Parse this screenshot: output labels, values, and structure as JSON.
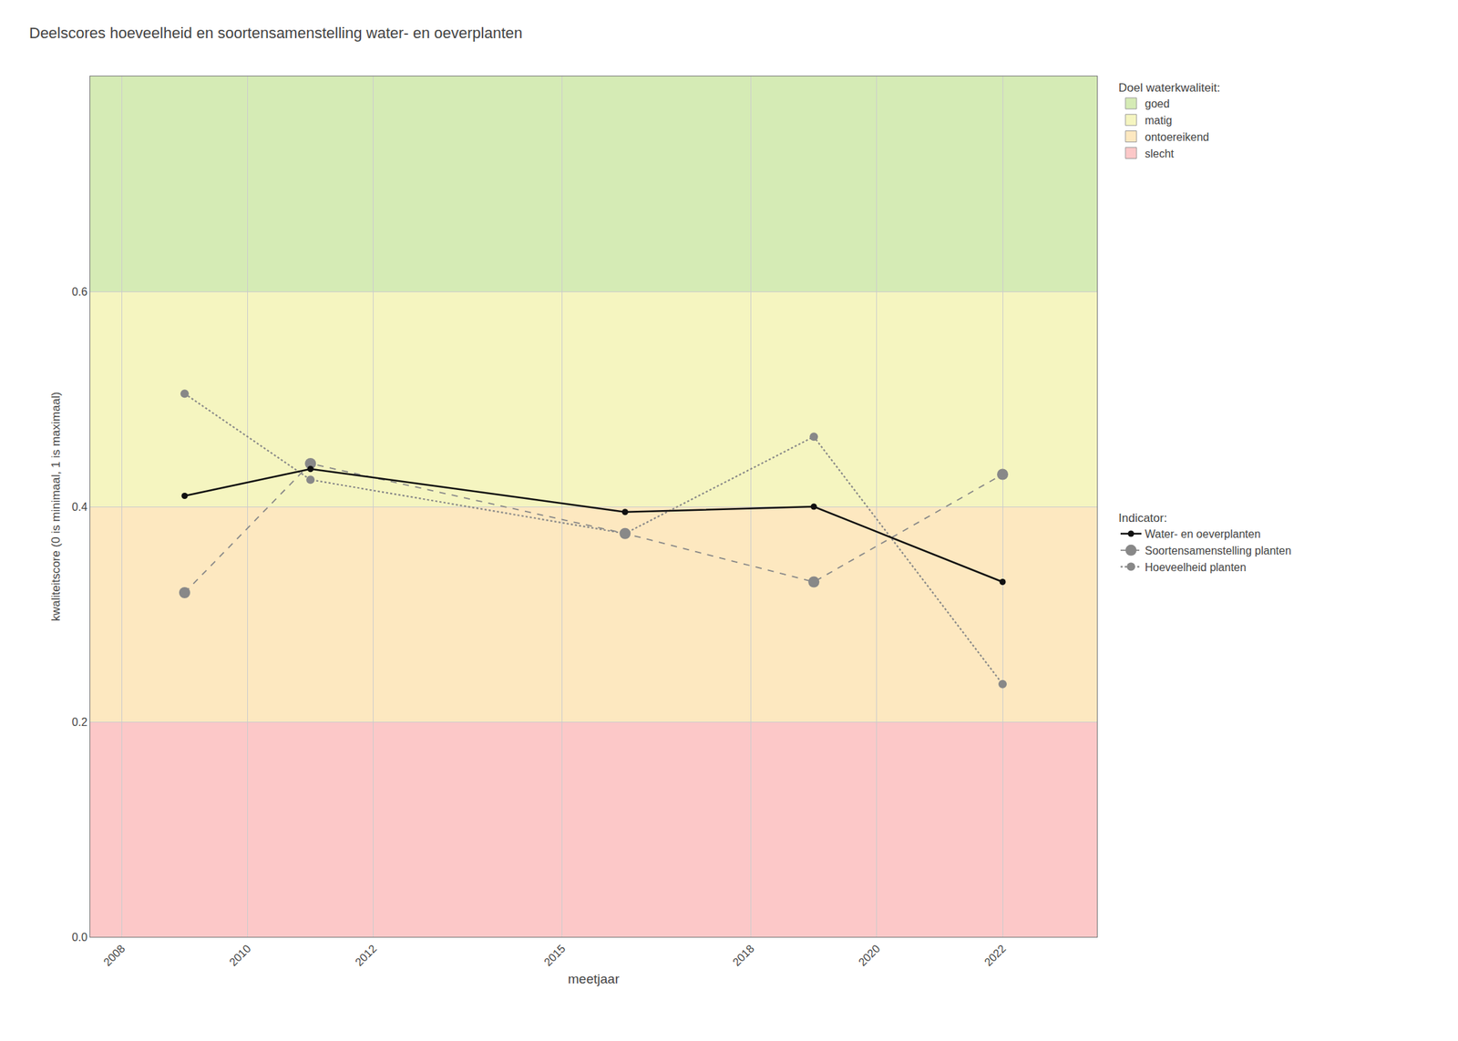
{
  "chart_data": {
    "type": "line",
    "title": "Deelscores hoeveelheid en soortensamenstelling water- en oeverplanten",
    "xlabel": "meetjaar",
    "ylabel": "kwaliteitscore (0 is minimaal, 1 is maximaal)",
    "x": [
      2009,
      2011,
      2016,
      2019,
      2022
    ],
    "xlim": [
      2007.5,
      2023.5
    ],
    "xticks": [
      2008,
      2010,
      2012,
      2015,
      2018,
      2020,
      2022
    ],
    "ylim": [
      0.0,
      0.8
    ],
    "yticks": [
      {
        "value": 0.0,
        "label": "0.0"
      },
      0.2,
      0.4,
      0.6
    ],
    "grid": true,
    "legend": "right",
    "zones_title": "Doel waterkwaliteit:",
    "zones": [
      {
        "name": "goed",
        "color": "#d5ebb5",
        "ymin": 0.6,
        "ymax": 0.8
      },
      {
        "name": "matig",
        "color": "#f5f5c0",
        "ymin": 0.4,
        "ymax": 0.6
      },
      {
        "name": "ontoereikend",
        "color": "#fde8c0",
        "ymin": 0.2,
        "ymax": 0.4
      },
      {
        "name": "slecht",
        "color": "#fcc8c8",
        "ymin": 0.0,
        "ymax": 0.2
      }
    ],
    "series_title": "Indicator:",
    "series": [
      {
        "name": "Water- en oeverplanten",
        "color": "#111111",
        "line_style": "solid",
        "marker": "circle",
        "values": [
          0.41,
          0.435,
          0.395,
          0.4,
          0.33
        ]
      },
      {
        "name": "Soortensamenstelling planten",
        "color": "#888888",
        "line_style": "dashed",
        "marker": "circle",
        "values": [
          0.32,
          0.44,
          0.375,
          0.33,
          0.43
        ]
      },
      {
        "name": "Hoeveelheid planten",
        "color": "#888888",
        "line_style": "dotted",
        "marker": "circle",
        "values": [
          0.505,
          0.425,
          0.375,
          0.465,
          0.235
        ]
      }
    ]
  }
}
